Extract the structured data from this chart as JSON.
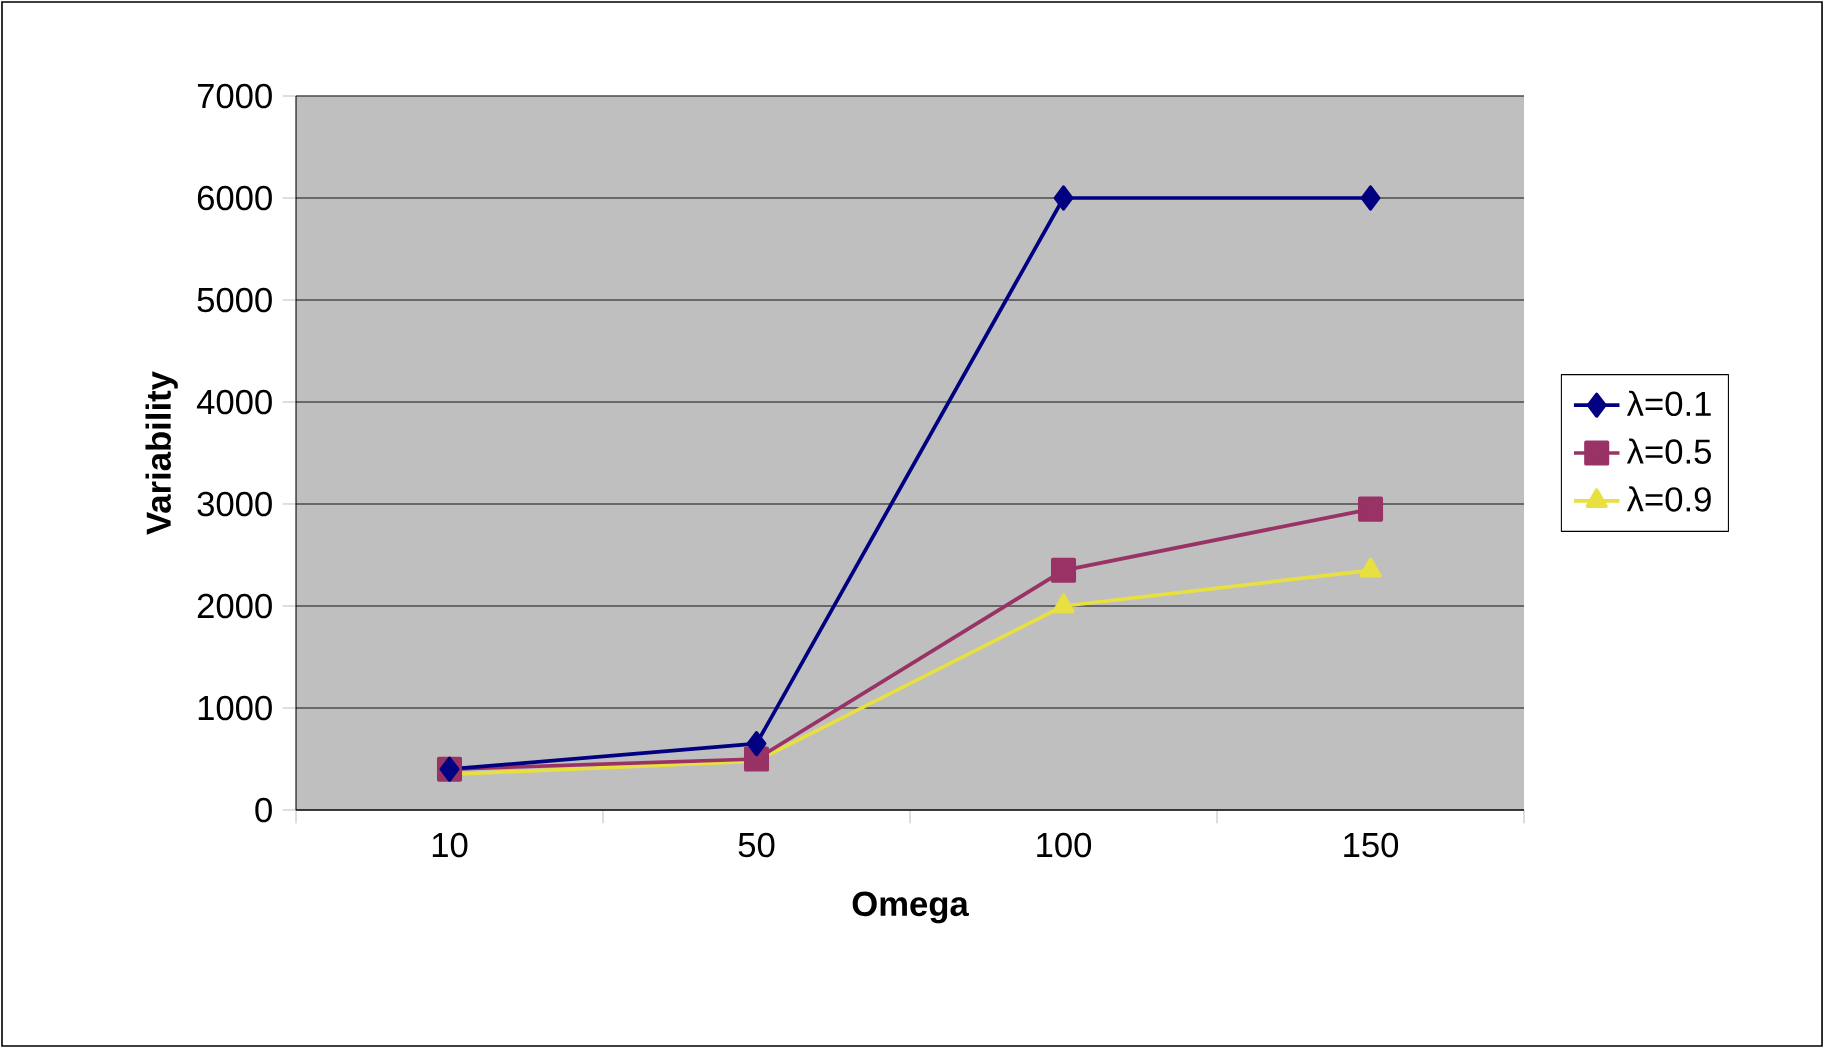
{
  "chart_data": {
    "type": "line",
    "xlabel": "Omega",
    "ylabel": "Variability",
    "categories": [
      "10",
      "50",
      "100",
      "150"
    ],
    "series": [
      {
        "name": "λ=0.1",
        "color": "#000080",
        "marker": "diamond",
        "values": [
          400,
          650,
          6000,
          6000
        ]
      },
      {
        "name": "λ=0.5",
        "color": "#993366",
        "marker": "square",
        "values": [
          400,
          500,
          2350,
          2950
        ]
      },
      {
        "name": "λ=0.9",
        "color": "#e8e040",
        "marker": "triangle",
        "values": [
          350,
          480,
          2000,
          2350
        ]
      }
    ],
    "ylim": [
      0,
      7000
    ],
    "yticks": [
      0,
      1000,
      2000,
      3000,
      4000,
      5000,
      6000,
      7000
    ],
    "grid": "y",
    "legend": "right",
    "line_style": "solid"
  }
}
